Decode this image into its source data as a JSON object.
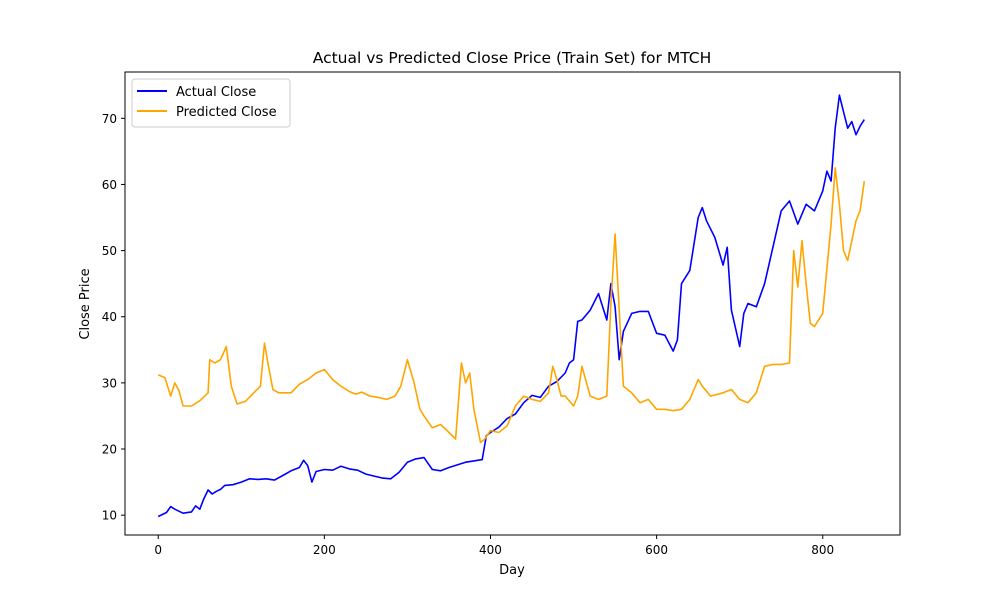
{
  "chart_data": {
    "type": "line",
    "title": "Actual vs Predicted Close Price (Train Set) for MTCH",
    "xlabel": "Day",
    "ylabel": "Close Price",
    "xlim": [
      -40,
      893
    ],
    "ylim": [
      7,
      77
    ],
    "xticks": [
      0,
      200,
      400,
      600,
      800
    ],
    "yticks": [
      10,
      20,
      30,
      40,
      50,
      60,
      70
    ],
    "grid": false,
    "legend_position": "upper left",
    "series": [
      {
        "name": "Actual Close",
        "color": "#0000ff",
        "x": [
          0,
          10,
          15,
          20,
          30,
          40,
          45,
          50,
          55,
          60,
          65,
          70,
          75,
          80,
          90,
          100,
          110,
          120,
          130,
          140,
          150,
          160,
          170,
          175,
          180,
          185,
          190,
          200,
          210,
          220,
          230,
          240,
          250,
          260,
          270,
          280,
          290,
          300,
          310,
          320,
          330,
          340,
          350,
          360,
          370,
          380,
          390,
          395,
          400,
          410,
          420,
          430,
          440,
          450,
          460,
          470,
          480,
          490,
          495,
          500,
          505,
          510,
          520,
          530,
          540,
          545,
          550,
          555,
          560,
          570,
          580,
          590,
          600,
          610,
          620,
          625,
          630,
          640,
          650,
          655,
          660,
          670,
          680,
          685,
          690,
          700,
          705,
          710,
          720,
          730,
          740,
          750,
          760,
          770,
          780,
          790,
          800,
          805,
          810,
          815,
          820,
          825,
          830,
          835,
          840,
          845,
          850
        ],
        "y": [
          9.8,
          10.4,
          11.3,
          10.9,
          10.3,
          10.5,
          11.4,
          10.9,
          12.5,
          13.8,
          13.2,
          13.6,
          13.9,
          14.5,
          14.6,
          15.0,
          15.5,
          15.4,
          15.5,
          15.3,
          16.0,
          16.7,
          17.2,
          18.3,
          17.5,
          15.0,
          16.6,
          16.9,
          16.8,
          17.4,
          17.0,
          16.8,
          16.2,
          15.9,
          15.6,
          15.5,
          16.5,
          18.0,
          18.5,
          18.7,
          16.9,
          16.7,
          17.2,
          17.6,
          18.0,
          18.2,
          18.4,
          22.0,
          22.5,
          23.3,
          24.6,
          25.3,
          27.0,
          28.1,
          27.8,
          29.5,
          30.2,
          31.5,
          33.0,
          33.5,
          39.3,
          39.5,
          41.0,
          43.5,
          39.5,
          45.0,
          41.5,
          33.5,
          37.8,
          40.5,
          40.8,
          40.8,
          37.5,
          37.2,
          34.8,
          36.5,
          45.0,
          47.0,
          55.0,
          56.5,
          54.5,
          52.0,
          47.8,
          50.5,
          41.0,
          35.5,
          40.5,
          42.0,
          41.5,
          45.0,
          50.5,
          56.0,
          57.5,
          54.0,
          57.0,
          56.0,
          59.0,
          62.0,
          60.5,
          68.5,
          73.5,
          71.0,
          68.5,
          69.5,
          67.5,
          68.8,
          69.8
        ]
      },
      {
        "name": "Predicted Close",
        "color": "#ffa500",
        "x": [
          0,
          8,
          15,
          20,
          25,
          30,
          40,
          50,
          60,
          62,
          68,
          75,
          82,
          88,
          95,
          105,
          115,
          123,
          128,
          132,
          138,
          145,
          160,
          170,
          180,
          190,
          200,
          210,
          220,
          230,
          238,
          245,
          255,
          265,
          275,
          285,
          292,
          300,
          308,
          315,
          320,
          330,
          340,
          350,
          358,
          365,
          370,
          375,
          380,
          388,
          393,
          400,
          410,
          420,
          430,
          440,
          450,
          460,
          470,
          475,
          480,
          485,
          490,
          500,
          505,
          510,
          520,
          530,
          540,
          545,
          550,
          555,
          560,
          570,
          580,
          590,
          600,
          610,
          620,
          630,
          640,
          645,
          650,
          655,
          665,
          680,
          690,
          700,
          710,
          720,
          730,
          740,
          750,
          760,
          765,
          770,
          775,
          780,
          785,
          790,
          800,
          810,
          815,
          820,
          825,
          830,
          835,
          840,
          845,
          850
        ],
        "y": [
          31.2,
          30.8,
          28.0,
          30.0,
          28.8,
          26.5,
          26.5,
          27.3,
          28.5,
          33.5,
          33.0,
          33.5,
          35.5,
          29.5,
          26.8,
          27.2,
          28.5,
          29.5,
          36.0,
          33.0,
          29.0,
          28.5,
          28.5,
          29.8,
          30.5,
          31.5,
          32.0,
          30.5,
          29.5,
          28.7,
          28.3,
          28.6,
          28.0,
          27.8,
          27.5,
          28.0,
          29.5,
          33.5,
          30.0,
          26.0,
          25.0,
          23.2,
          23.7,
          22.5,
          21.5,
          33.0,
          30.0,
          31.5,
          26.0,
          21.0,
          21.5,
          22.8,
          22.5,
          23.5,
          26.5,
          28.0,
          27.5,
          27.2,
          28.5,
          32.5,
          30.5,
          28.0,
          28.0,
          26.5,
          28.0,
          32.5,
          28.0,
          27.5,
          28.0,
          42.0,
          52.5,
          41.0,
          29.5,
          28.5,
          27.0,
          27.5,
          26.0,
          26.0,
          25.8,
          26.0,
          27.5,
          29.0,
          30.5,
          29.5,
          28.0,
          28.5,
          29.0,
          27.5,
          27.0,
          28.5,
          32.5,
          32.8,
          32.8,
          33.0,
          50.0,
          44.5,
          51.5,
          45.0,
          39.0,
          38.5,
          40.5,
          54.0,
          62.5,
          57.0,
          50.0,
          48.5,
          51.5,
          54.5,
          56.0,
          60.5
        ]
      }
    ]
  }
}
